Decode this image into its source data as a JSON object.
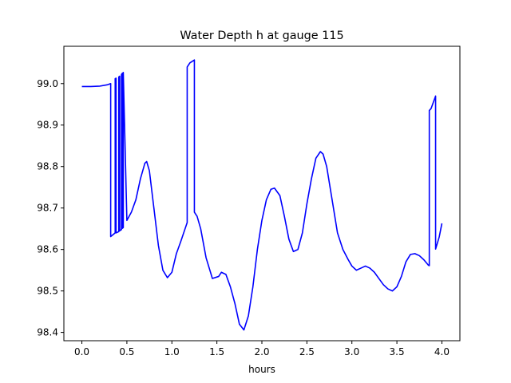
{
  "chart_data": {
    "type": "line",
    "title": "Water Depth h at gauge 115",
    "xlabel": "hours",
    "ylabel": "",
    "xlim": [
      -0.2,
      4.2
    ],
    "ylim": [
      98.38,
      99.09
    ],
    "x_ticks": [
      0.0,
      0.5,
      1.0,
      1.5,
      2.0,
      2.5,
      3.0,
      3.5,
      4.0
    ],
    "x_tick_labels": [
      "0.0",
      "0.5",
      "1.0",
      "1.5",
      "2.0",
      "2.5",
      "3.0",
      "3.5",
      "4.0"
    ],
    "y_ticks": [
      98.4,
      98.5,
      98.6,
      98.7,
      98.8,
      98.9,
      99.0
    ],
    "y_tick_labels": [
      "98.4",
      "98.5",
      "98.6",
      "98.7",
      "98.8",
      "98.9",
      "99.0"
    ],
    "grid": false,
    "legend": "none",
    "series": [
      {
        "color": "#0000ff",
        "x": [
          0.0,
          0.1,
          0.2,
          0.28,
          0.32,
          0.32,
          0.37,
          0.37,
          0.38,
          0.38,
          0.41,
          0.41,
          0.42,
          0.42,
          0.44,
          0.44,
          0.45,
          0.45,
          0.46,
          0.46,
          0.5,
          0.55,
          0.6,
          0.65,
          0.7,
          0.72,
          0.75,
          0.8,
          0.85,
          0.9,
          0.95,
          1.0,
          1.05,
          1.1,
          1.17,
          1.17,
          1.2,
          1.25,
          1.25,
          1.28,
          1.32,
          1.38,
          1.45,
          1.52,
          1.55,
          1.6,
          1.65,
          1.7,
          1.75,
          1.8,
          1.85,
          1.9,
          1.95,
          2.0,
          2.05,
          2.1,
          2.14,
          2.2,
          2.25,
          2.3,
          2.35,
          2.4,
          2.45,
          2.5,
          2.55,
          2.6,
          2.65,
          2.68,
          2.72,
          2.78,
          2.84,
          2.9,
          2.96,
          3.0,
          3.05,
          3.1,
          3.15,
          3.2,
          3.25,
          3.3,
          3.35,
          3.4,
          3.45,
          3.5,
          3.55,
          3.6,
          3.65,
          3.7,
          3.75,
          3.8,
          3.85,
          3.86,
          3.86,
          3.88,
          3.93,
          3.93,
          3.97,
          4.0
        ],
        "y": [
          98.993,
          98.993,
          98.994,
          98.997,
          99.0,
          98.631,
          98.64,
          99.012,
          99.013,
          98.64,
          98.643,
          99.016,
          99.018,
          98.645,
          98.648,
          99.022,
          99.025,
          98.651,
          98.653,
          99.027,
          98.67,
          98.69,
          98.72,
          98.77,
          98.808,
          98.812,
          98.79,
          98.7,
          98.61,
          98.55,
          98.532,
          98.545,
          98.59,
          98.62,
          98.665,
          99.04,
          99.05,
          99.057,
          98.69,
          98.68,
          98.65,
          98.58,
          98.53,
          98.535,
          98.545,
          98.54,
          98.51,
          98.47,
          98.42,
          98.406,
          98.44,
          98.51,
          98.6,
          98.67,
          98.72,
          98.745,
          98.748,
          98.73,
          98.68,
          98.625,
          98.595,
          98.6,
          98.64,
          98.71,
          98.77,
          98.82,
          98.836,
          98.83,
          98.8,
          98.72,
          98.64,
          98.6,
          98.575,
          98.56,
          98.55,
          98.555,
          98.56,
          98.555,
          98.545,
          98.53,
          98.515,
          98.505,
          98.5,
          98.51,
          98.535,
          98.57,
          98.588,
          98.59,
          98.585,
          98.575,
          98.562,
          98.561,
          98.935,
          98.94,
          98.97,
          98.601,
          98.63,
          98.663
        ]
      }
    ]
  }
}
